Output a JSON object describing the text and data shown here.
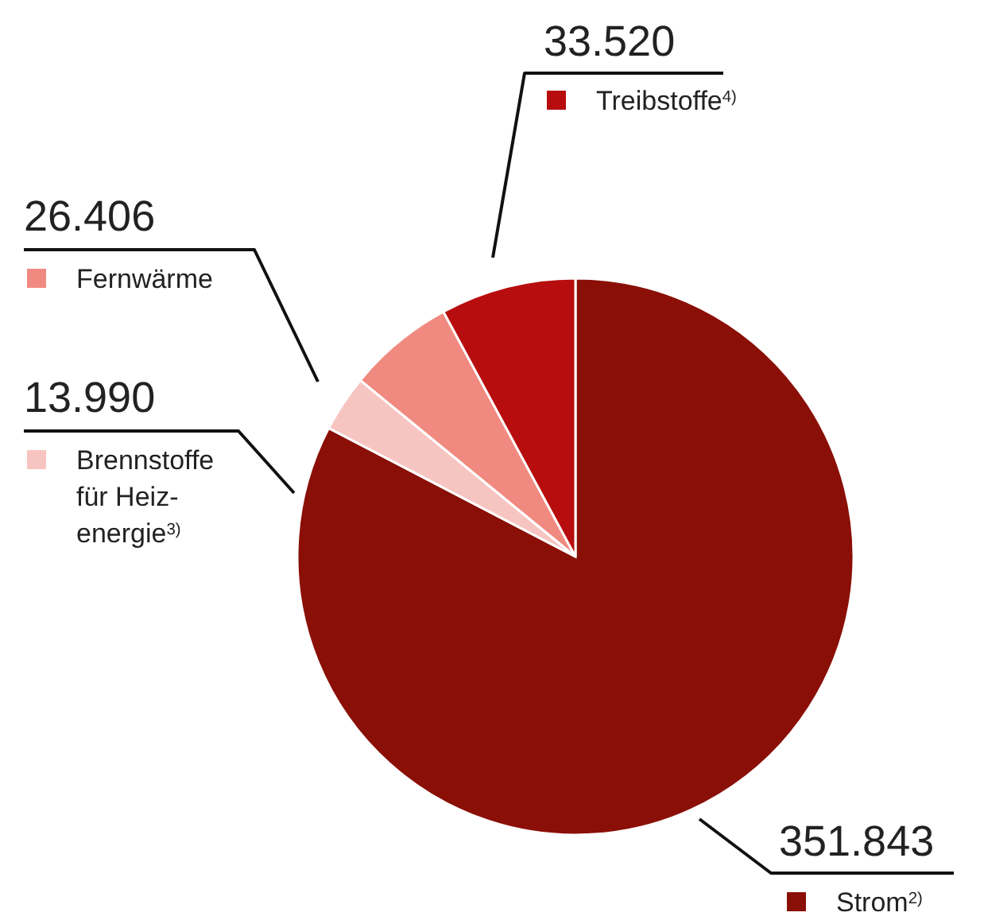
{
  "chart_data": {
    "type": "pie",
    "categories": [
      "Strom$^{2)}$",
      "Brennstoffe für Heiz-energie$^{3)}$",
      "Fernwärme",
      "Treibstoffe$^{4)}$"
    ],
    "values": [
      351843,
      13990,
      26406,
      33520
    ],
    "value_labels": [
      "351.843",
      "13.990",
      "26.406",
      "33.520"
    ],
    "colors": [
      "#8a0f07",
      "#f7c5c1",
      "#f08a80",
      "#b80d0e"
    ],
    "legend": "left"
  }
}
